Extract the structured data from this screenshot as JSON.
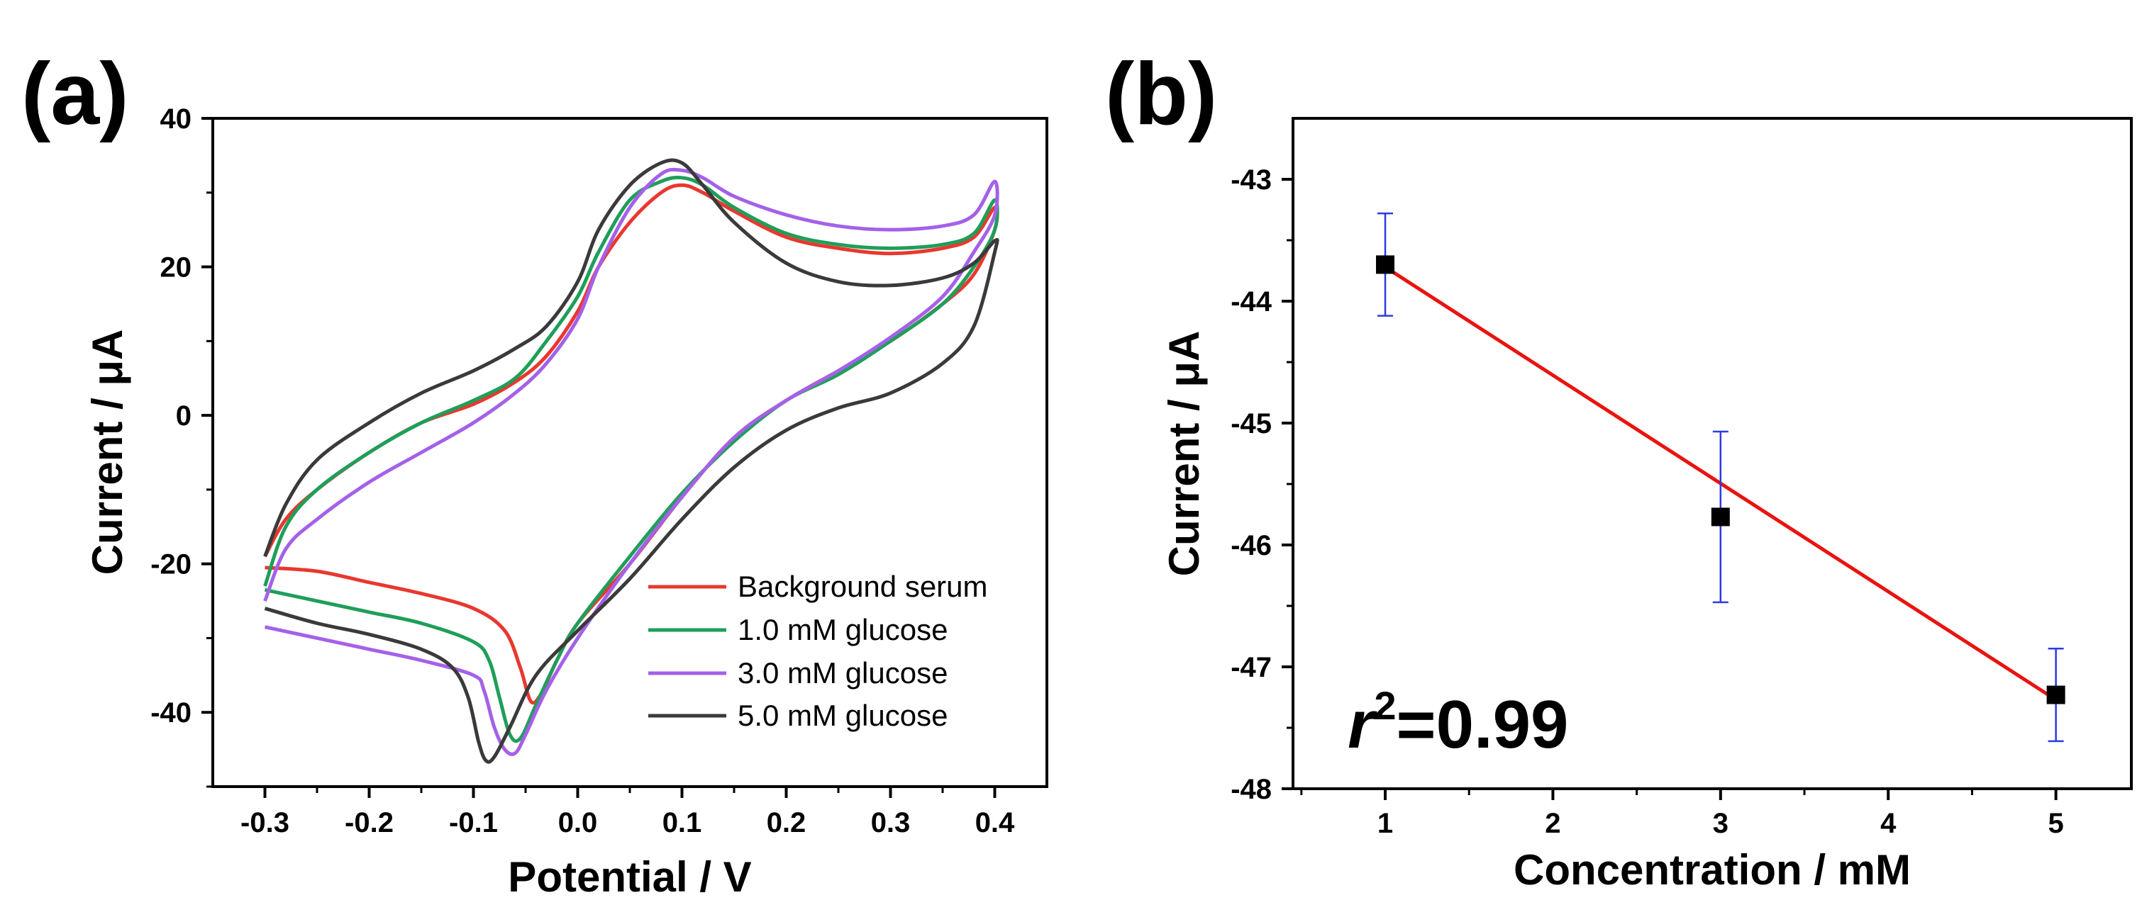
{
  "chart_data": [
    {
      "panel_label": "(a)",
      "type": "line",
      "xlabel": "Potential / V",
      "ylabel": "Current / μA",
      "xlim": [
        -0.35,
        0.45
      ],
      "ylim": [
        -50,
        40
      ],
      "xticks": [
        -0.3,
        -0.2,
        -0.1,
        0.0,
        0.1,
        0.2,
        0.3,
        0.4
      ],
      "xtick_labels": [
        "-0.3",
        "-0.2",
        "-0.1",
        "0.0",
        "0.1",
        "0.2",
        "0.3",
        "0.4"
      ],
      "yticks": [
        -40,
        -20,
        0,
        20,
        40
      ],
      "ytick_labels": [
        "-40",
        "-20",
        "0",
        "20",
        "40"
      ],
      "legend_position": "bottom-right",
      "series": [
        {
          "name": "Background serum",
          "color": "#e8382f",
          "points": [
            [
              -0.3,
              -20.5
            ],
            [
              -0.25,
              -21
            ],
            [
              -0.2,
              -22.5
            ],
            [
              -0.15,
              -24
            ],
            [
              -0.1,
              -26
            ],
            [
              -0.07,
              -29
            ],
            [
              -0.055,
              -34
            ],
            [
              -0.045,
              -38.5
            ],
            [
              -0.035,
              -37.5
            ],
            [
              -0.02,
              -33
            ],
            [
              0.0,
              -28
            ],
            [
              0.05,
              -20
            ],
            [
              0.1,
              -11
            ],
            [
              0.15,
              -3
            ],
            [
              0.2,
              2
            ],
            [
              0.25,
              6
            ],
            [
              0.3,
              10
            ],
            [
              0.35,
              15
            ],
            [
              0.38,
              19
            ],
            [
              0.4,
              25
            ],
            [
              0.4,
              28
            ],
            [
              0.38,
              24
            ],
            [
              0.35,
              22.5
            ],
            [
              0.3,
              21.8
            ],
            [
              0.25,
              22.5
            ],
            [
              0.2,
              24
            ],
            [
              0.15,
              27.5
            ],
            [
              0.12,
              30
            ],
            [
              0.1,
              31
            ],
            [
              0.08,
              30
            ],
            [
              0.05,
              26
            ],
            [
              0.02,
              20
            ],
            [
              0.0,
              14
            ],
            [
              -0.03,
              8
            ],
            [
              -0.06,
              4.5
            ],
            [
              -0.1,
              1.5
            ],
            [
              -0.15,
              -1
            ],
            [
              -0.2,
              -5
            ],
            [
              -0.25,
              -10
            ],
            [
              -0.28,
              -14
            ],
            [
              -0.3,
              -19
            ]
          ]
        },
        {
          "name": "1.0 mM glucose",
          "color": "#1f9e5a",
          "points": [
            [
              -0.3,
              -23.5
            ],
            [
              -0.25,
              -25
            ],
            [
              -0.2,
              -26.5
            ],
            [
              -0.15,
              -28
            ],
            [
              -0.1,
              -30.5
            ],
            [
              -0.085,
              -33
            ],
            [
              -0.075,
              -38
            ],
            [
              -0.065,
              -43
            ],
            [
              -0.055,
              -43.5
            ],
            [
              -0.04,
              -39
            ],
            [
              -0.02,
              -33
            ],
            [
              0.0,
              -28
            ],
            [
              0.05,
              -19
            ],
            [
              0.1,
              -10.5
            ],
            [
              0.15,
              -3.5
            ],
            [
              0.2,
              2
            ],
            [
              0.25,
              5.5
            ],
            [
              0.3,
              10
            ],
            [
              0.35,
              15
            ],
            [
              0.38,
              20
            ],
            [
              0.4,
              25
            ],
            [
              0.4,
              29
            ],
            [
              0.38,
              24.5
            ],
            [
              0.35,
              23
            ],
            [
              0.3,
              22.5
            ],
            [
              0.25,
              23
            ],
            [
              0.2,
              24.5
            ],
            [
              0.15,
              28
            ],
            [
              0.12,
              31
            ],
            [
              0.1,
              32
            ],
            [
              0.08,
              31.5
            ],
            [
              0.05,
              29
            ],
            [
              0.02,
              22
            ],
            [
              0.0,
              16
            ],
            [
              -0.03,
              10
            ],
            [
              -0.06,
              5
            ],
            [
              -0.1,
              2
            ],
            [
              -0.15,
              -1
            ],
            [
              -0.2,
              -5
            ],
            [
              -0.25,
              -10
            ],
            [
              -0.28,
              -15
            ],
            [
              -0.3,
              -23
            ]
          ]
        },
        {
          "name": "3.0 mM glucose",
          "color": "#a461e8",
          "points": [
            [
              -0.3,
              -28.5
            ],
            [
              -0.25,
              -30
            ],
            [
              -0.2,
              -31.5
            ],
            [
              -0.15,
              -33
            ],
            [
              -0.1,
              -35
            ],
            [
              -0.09,
              -37
            ],
            [
              -0.08,
              -42
            ],
            [
              -0.07,
              -45
            ],
            [
              -0.06,
              -45.5
            ],
            [
              -0.05,
              -43
            ],
            [
              -0.03,
              -37
            ],
            [
              0.0,
              -30
            ],
            [
              0.05,
              -20
            ],
            [
              0.1,
              -11
            ],
            [
              0.15,
              -3
            ],
            [
              0.2,
              2
            ],
            [
              0.25,
              6
            ],
            [
              0.3,
              10.5
            ],
            [
              0.35,
              16
            ],
            [
              0.38,
              22
            ],
            [
              0.4,
              27
            ],
            [
              0.4,
              31.5
            ],
            [
              0.38,
              27
            ],
            [
              0.35,
              25.5
            ],
            [
              0.3,
              25
            ],
            [
              0.25,
              25.5
            ],
            [
              0.2,
              27
            ],
            [
              0.15,
              29.5
            ],
            [
              0.12,
              32
            ],
            [
              0.1,
              33
            ],
            [
              0.08,
              32.5
            ],
            [
              0.05,
              28
            ],
            [
              0.02,
              20
            ],
            [
              0.0,
              13
            ],
            [
              -0.03,
              7
            ],
            [
              -0.06,
              3
            ],
            [
              -0.1,
              -1
            ],
            [
              -0.15,
              -5
            ],
            [
              -0.2,
              -9
            ],
            [
              -0.25,
              -14
            ],
            [
              -0.28,
              -18
            ],
            [
              -0.3,
              -25
            ]
          ]
        },
        {
          "name": "5.0 mM glucose",
          "color": "#3a3a3a",
          "points": [
            [
              -0.3,
              -26
            ],
            [
              -0.25,
              -28
            ],
            [
              -0.2,
              -29.5
            ],
            [
              -0.15,
              -31.5
            ],
            [
              -0.12,
              -34
            ],
            [
              -0.105,
              -38
            ],
            [
              -0.095,
              -44
            ],
            [
              -0.088,
              -46.5
            ],
            [
              -0.08,
              -46
            ],
            [
              -0.065,
              -42
            ],
            [
              -0.04,
              -35
            ],
            [
              0.0,
              -29
            ],
            [
              0.05,
              -22
            ],
            [
              0.1,
              -14
            ],
            [
              0.15,
              -7
            ],
            [
              0.2,
              -2
            ],
            [
              0.25,
              1
            ],
            [
              0.3,
              3
            ],
            [
              0.35,
              7
            ],
            [
              0.38,
              12
            ],
            [
              0.4,
              22
            ],
            [
              0.4,
              23.5
            ],
            [
              0.38,
              20.5
            ],
            [
              0.35,
              18.5
            ],
            [
              0.3,
              17.5
            ],
            [
              0.25,
              18
            ],
            [
              0.2,
              20.5
            ],
            [
              0.15,
              26
            ],
            [
              0.12,
              31
            ],
            [
              0.1,
              34
            ],
            [
              0.08,
              34
            ],
            [
              0.05,
              31
            ],
            [
              0.02,
              25
            ],
            [
              0.0,
              18
            ],
            [
              -0.03,
              12
            ],
            [
              -0.06,
              9
            ],
            [
              -0.1,
              6
            ],
            [
              -0.15,
              3
            ],
            [
              -0.2,
              -1
            ],
            [
              -0.25,
              -6
            ],
            [
              -0.28,
              -12
            ],
            [
              -0.3,
              -19
            ]
          ]
        }
      ]
    },
    {
      "panel_label": "(b)",
      "type": "scatter",
      "xlabel": "Concentration / mM",
      "ylabel": "Current / μA",
      "xlim": [
        0.45,
        5.45
      ],
      "ylim": [
        -48,
        -42.5
      ],
      "xticks": [
        1,
        2,
        3,
        4,
        5
      ],
      "xtick_labels": [
        "1",
        "2",
        "3",
        "4",
        "5"
      ],
      "yticks": [
        -48,
        -47,
        -46,
        -45,
        -44,
        -43
      ],
      "ytick_labels": [
        "-48",
        "-47",
        "-46",
        "-45",
        "-44",
        "-43"
      ],
      "points": [
        {
          "x": 1,
          "y": -43.7,
          "err": 0.42
        },
        {
          "x": 3,
          "y": -45.77,
          "err": 0.7
        },
        {
          "x": 5,
          "y": -47.23,
          "err": 0.38
        }
      ],
      "point_color": "#000000",
      "errorbar_color": "#2d3be0",
      "fit": {
        "x": [
          1,
          5
        ],
        "y": [
          -43.72,
          -47.27
        ],
        "color": "#e8140f"
      },
      "annotation": {
        "r_symbol": "r",
        "superscript": "2",
        "text": "=0.99"
      }
    }
  ]
}
